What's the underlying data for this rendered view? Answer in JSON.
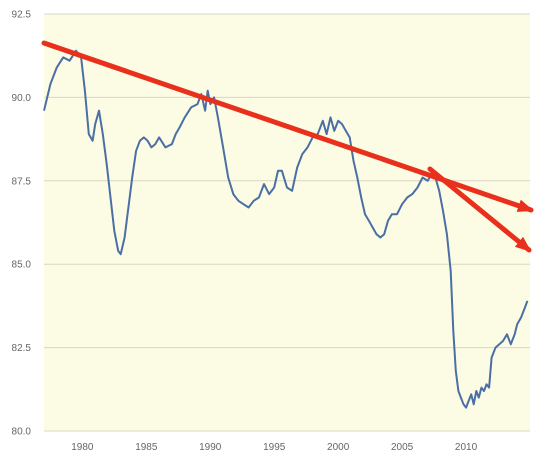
{
  "chart_data": {
    "type": "line",
    "title": "",
    "xlabel": "",
    "ylabel": "",
    "xlim": [
      1977,
      2015
    ],
    "ylim": [
      80.0,
      92.5
    ],
    "grid": true,
    "x_ticks": [
      "1980",
      "1985",
      "1990",
      "1995",
      "2000",
      "2005",
      "2010"
    ],
    "y_ticks": [
      "80.0",
      "82.5",
      "85.0",
      "87.5",
      "90.0",
      "92.5"
    ],
    "colors": {
      "plot_background": "#fcfbe3",
      "grid": "#d8d8c8",
      "series": "#4a6fa5",
      "trend_arrows": "#e8301c"
    },
    "series": [
      {
        "x": [
          1977.0,
          1977.5,
          1978.0,
          1978.5,
          1979.0,
          1979.5,
          1979.9,
          1980.2,
          1980.5,
          1980.8,
          1981.0,
          1981.3,
          1981.6,
          1981.9,
          1982.2,
          1982.5,
          1982.8,
          1983.0,
          1983.3,
          1983.6,
          1983.9,
          1984.2,
          1984.5,
          1984.8,
          1985.1,
          1985.4,
          1985.7,
          1986.0,
          1986.5,
          1987.0,
          1987.3,
          1987.6,
          1988.0,
          1988.5,
          1989.0,
          1989.3,
          1989.6,
          1989.8,
          1990.0,
          1990.3,
          1990.6,
          1991.0,
          1991.4,
          1991.8,
          1992.2,
          1992.6,
          1993.0,
          1993.4,
          1993.8,
          1994.2,
          1994.6,
          1995.0,
          1995.3,
          1995.6,
          1996.0,
          1996.4,
          1996.8,
          1997.2,
          1997.6,
          1998.0,
          1998.4,
          1998.8,
          1999.1,
          1999.4,
          1999.7,
          2000.0,
          2000.3,
          2000.6,
          2000.9,
          2001.2,
          2001.5,
          2001.8,
          2002.1,
          2002.4,
          2002.7,
          2003.0,
          2003.3,
          2003.6,
          2003.9,
          2004.2,
          2004.6,
          2005.0,
          2005.4,
          2005.8,
          2006.2,
          2006.6,
          2007.0,
          2007.3,
          2007.6,
          2007.9,
          2008.2,
          2008.5,
          2008.8,
          2009.0,
          2009.2,
          2009.4,
          2009.6,
          2009.8,
          2010.0,
          2010.2,
          2010.4,
          2010.6,
          2010.8,
          2011.0,
          2011.2,
          2011.4,
          2011.6,
          2011.8,
          2012.0,
          2012.3,
          2012.6,
          2012.9,
          2013.2,
          2013.5,
          2013.8,
          2014.0,
          2014.3,
          2014.6,
          2014.8
        ],
        "values": [
          89.6,
          90.4,
          90.9,
          91.2,
          91.1,
          91.4,
          91.2,
          90.2,
          88.9,
          88.7,
          89.2,
          89.6,
          88.9,
          88.0,
          87.0,
          86.0,
          85.4,
          85.3,
          85.8,
          86.7,
          87.6,
          88.4,
          88.7,
          88.8,
          88.7,
          88.5,
          88.6,
          88.8,
          88.5,
          88.6,
          88.9,
          89.1,
          89.4,
          89.7,
          89.8,
          90.1,
          89.6,
          90.2,
          89.8,
          90.0,
          89.4,
          88.5,
          87.6,
          87.1,
          86.9,
          86.8,
          86.7,
          86.9,
          87.0,
          87.4,
          87.1,
          87.3,
          87.8,
          87.8,
          87.3,
          87.2,
          87.9,
          88.3,
          88.5,
          88.8,
          88.9,
          89.3,
          88.9,
          89.4,
          89.0,
          89.3,
          89.2,
          89.0,
          88.8,
          88.1,
          87.6,
          87.0,
          86.5,
          86.3,
          86.1,
          85.9,
          85.8,
          85.9,
          86.3,
          86.5,
          86.5,
          86.8,
          87.0,
          87.1,
          87.3,
          87.6,
          87.5,
          87.7,
          87.6,
          87.2,
          86.6,
          85.9,
          84.8,
          83.0,
          81.8,
          81.2,
          81.0,
          80.8,
          80.7,
          80.9,
          81.1,
          80.8,
          81.2,
          81.0,
          81.3,
          81.2,
          81.4,
          81.3,
          82.2,
          82.5,
          82.6,
          82.7,
          82.9,
          82.6,
          82.9,
          83.2,
          83.4,
          83.7,
          83.9
        ]
      }
    ]
  }
}
